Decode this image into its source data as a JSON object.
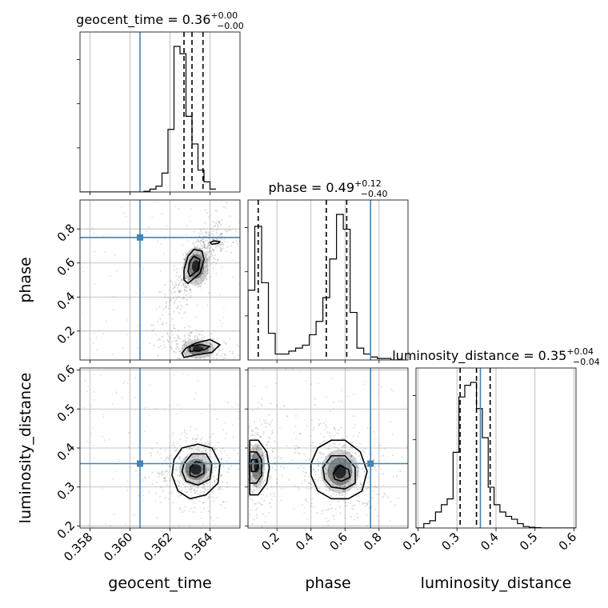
{
  "chart_data": {
    "type": "corner",
    "truth_color": "#4682b4",
    "hist_color": "#000000",
    "grid": true,
    "parameters": [
      {
        "name": "geocent_time",
        "label": "geocent_time",
        "truth": 0.3605,
        "range": [
          0.3575,
          0.3655
        ],
        "ticks": [
          0.358,
          0.36,
          0.362,
          0.364
        ],
        "tick_labels": [
          "0.358",
          "0.360",
          "0.362",
          "0.364"
        ],
        "title": {
          "prefix": "geocent_time = 0.36",
          "sup": "+0.00",
          "sub": "−0.00"
        },
        "quantiles": [
          0.3627,
          0.3631,
          0.36365
        ],
        "hist": {
          "edges_start": 0.3604,
          "bin_width": 0.0003,
          "counts": [
            0,
            0.5,
            2,
            4,
            13,
            43,
            100,
            95,
            52,
            33,
            15,
            7,
            2
          ]
        }
      },
      {
        "name": "phase",
        "label": "phase",
        "truth": 0.75,
        "range": [
          0.03,
          0.97
        ],
        "ticks": [
          0.2,
          0.4,
          0.6,
          0.8
        ],
        "tick_labels": [
          "0.2",
          "0.4",
          "0.6",
          "0.8"
        ],
        "title": {
          "prefix": "phase = 0.49",
          "sup": "+0.12",
          "sub": "−0.40"
        },
        "quantiles": [
          0.09,
          0.49,
          0.61
        ],
        "hist": {
          "edges_start": 0.03,
          "bin_width": 0.04,
          "counts": [
            47,
            90,
            52,
            18,
            4,
            4,
            6,
            8,
            10,
            17,
            26,
            42,
            68,
            98,
            88,
            32,
            8,
            4,
            2,
            1,
            1,
            0,
            0
          ]
        }
      },
      {
        "name": "luminosity_distance",
        "label": "luminosity_distance",
        "truth": 0.36,
        "range": [
          0.195,
          0.605
        ],
        "ticks": [
          0.2,
          0.3,
          0.4,
          0.5,
          0.6
        ],
        "tick_labels": [
          "0.2",
          "0.3",
          "0.4",
          "0.5",
          "0.6"
        ],
        "title": {
          "prefix": "luminosity_distance = 0.35",
          "sup": "+0.04",
          "sub": "−0.04"
        },
        "quantiles": [
          0.308,
          0.35,
          0.385
        ],
        "hist": {
          "edges_start": 0.215,
          "bin_width": 0.015,
          "counts": [
            3,
            5,
            11,
            16,
            20,
            52,
            90,
            98,
            100,
            82,
            62,
            28,
            16,
            11,
            8,
            6,
            3,
            1,
            0.5,
            0.2,
            0,
            0,
            0,
            0,
            0,
            0
          ]
        }
      }
    ],
    "pairs": [
      {
        "x": "geocent_time",
        "y": "phase",
        "blobs": [
          {
            "cx": 0.3633,
            "cy": 0.58,
            "sx": 0.00045,
            "sy": 0.08,
            "rho": 0.75,
            "w": 1.0
          },
          {
            "cx": 0.3634,
            "cy": 0.095,
            "sx": 0.0006,
            "sy": 0.04,
            "rho": -0.5,
            "w": 0.6
          },
          {
            "cx": 0.3643,
            "cy": 0.72,
            "sx": 0.00045,
            "sy": 0.02,
            "rho": 0.0,
            "w": 0.15
          }
        ],
        "contours": [
          [
            [
              0.3629,
              0.48
            ],
            [
              0.3635,
              0.54
            ],
            [
              0.3637,
              0.62
            ],
            [
              0.3636,
              0.67
            ],
            [
              0.3632,
              0.68
            ],
            [
              0.3629,
              0.64
            ],
            [
              0.3627,
              0.56
            ],
            [
              0.3627,
              0.5
            ]
          ],
          [
            [
              0.363,
              0.52
            ],
            [
              0.3634,
              0.56
            ],
            [
              0.3635,
              0.62
            ],
            [
              0.3632,
              0.64
            ],
            [
              0.363,
              0.61
            ],
            [
              0.3629,
              0.55
            ]
          ],
          [
            [
              0.3627,
              0.045
            ],
            [
              0.3633,
              0.06
            ],
            [
              0.3641,
              0.075
            ],
            [
              0.3645,
              0.12
            ],
            [
              0.364,
              0.15
            ],
            [
              0.3633,
              0.13
            ],
            [
              0.3628,
              0.1
            ],
            [
              0.3626,
              0.07
            ]
          ],
          [
            [
              0.363,
              0.08
            ],
            [
              0.3637,
              0.09
            ],
            [
              0.364,
              0.11
            ],
            [
              0.3635,
              0.12
            ],
            [
              0.363,
              0.11
            ]
          ],
          [
            [
              0.3641,
              0.71
            ],
            [
              0.3644,
              0.715
            ],
            [
              0.3645,
              0.725
            ],
            [
              0.3642,
              0.73
            ],
            [
              0.364,
              0.72
            ]
          ]
        ]
      },
      {
        "x": "geocent_time",
        "y": "luminosity_distance",
        "blobs": [
          {
            "cx": 0.3633,
            "cy": 0.345,
            "sx": 0.0006,
            "sy": 0.03,
            "rho": 0.1,
            "w": 1.0
          }
        ],
        "contours": [
          [
            [
              0.3622,
              0.37
            ],
            [
              0.3626,
              0.4
            ],
            [
              0.3634,
              0.41
            ],
            [
              0.3641,
              0.4
            ],
            [
              0.3645,
              0.36
            ],
            [
              0.3644,
              0.31
            ],
            [
              0.3638,
              0.28
            ],
            [
              0.363,
              0.27
            ],
            [
              0.3624,
              0.29
            ],
            [
              0.3621,
              0.33
            ]
          ],
          [
            [
              0.3627,
              0.36
            ],
            [
              0.3631,
              0.385
            ],
            [
              0.3638,
              0.385
            ],
            [
              0.3641,
              0.36
            ],
            [
              0.364,
              0.32
            ],
            [
              0.3634,
              0.305
            ],
            [
              0.3628,
              0.315
            ],
            [
              0.3626,
              0.34
            ]
          ],
          [
            [
              0.363,
              0.35
            ],
            [
              0.3633,
              0.365
            ],
            [
              0.3637,
              0.36
            ],
            [
              0.3637,
              0.335
            ],
            [
              0.3633,
              0.325
            ],
            [
              0.363,
              0.33
            ]
          ]
        ]
      },
      {
        "x": "phase",
        "y": "luminosity_distance",
        "blobs": [
          {
            "cx": 0.08,
            "cy": 0.355,
            "sx": 0.035,
            "sy": 0.04,
            "rho": 0.0,
            "w": 0.75
          },
          {
            "cx": 0.57,
            "cy": 0.34,
            "sx": 0.08,
            "sy": 0.04,
            "rho": -0.2,
            "w": 1.0
          }
        ],
        "contours": [
          [
            [
              0.04,
              0.42
            ],
            [
              0.09,
              0.42
            ],
            [
              0.14,
              0.39
            ],
            [
              0.155,
              0.35
            ],
            [
              0.14,
              0.31
            ],
            [
              0.09,
              0.28
            ],
            [
              0.04,
              0.28
            ]
          ],
          [
            [
              0.04,
              0.39
            ],
            [
              0.08,
              0.39
            ],
            [
              0.11,
              0.37
            ],
            [
              0.11,
              0.33
            ],
            [
              0.08,
              0.31
            ],
            [
              0.04,
              0.31
            ]
          ],
          [
            [
              0.05,
              0.37
            ],
            [
              0.08,
              0.37
            ],
            [
              0.09,
              0.35
            ],
            [
              0.07,
              0.34
            ],
            [
              0.05,
              0.34
            ]
          ],
          [
            [
              0.4,
              0.36
            ],
            [
              0.44,
              0.4
            ],
            [
              0.52,
              0.42
            ],
            [
              0.6,
              0.42
            ],
            [
              0.69,
              0.39
            ],
            [
              0.73,
              0.34
            ],
            [
              0.7,
              0.29
            ],
            [
              0.62,
              0.27
            ],
            [
              0.52,
              0.27
            ],
            [
              0.44,
              0.29
            ],
            [
              0.4,
              0.33
            ]
          ],
          [
            [
              0.47,
              0.35
            ],
            [
              0.52,
              0.38
            ],
            [
              0.6,
              0.38
            ],
            [
              0.66,
              0.35
            ],
            [
              0.66,
              0.31
            ],
            [
              0.6,
              0.295
            ],
            [
              0.52,
              0.3
            ],
            [
              0.48,
              0.32
            ]
          ],
          [
            [
              0.53,
              0.335
            ],
            [
              0.57,
              0.355
            ],
            [
              0.62,
              0.345
            ],
            [
              0.63,
              0.325
            ],
            [
              0.58,
              0.315
            ],
            [
              0.54,
              0.32
            ]
          ]
        ]
      }
    ]
  }
}
